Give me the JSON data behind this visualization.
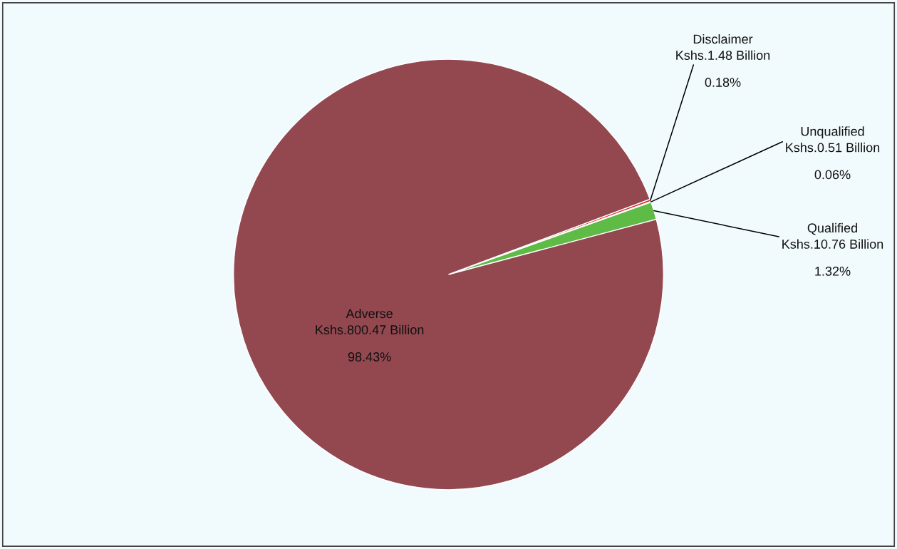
{
  "chart_data": {
    "type": "pie",
    "categories": [
      "Disclaimer",
      "Unqualified",
      "Qualified",
      "Adverse"
    ],
    "values": [
      1.48,
      0.51,
      10.76,
      800.47
    ],
    "colors": [
      "#e0302a",
      "#4a6fb5",
      "#5dbb46",
      "#934850"
    ],
    "value_labels": [
      "Kshs.1.48 Billion",
      "Kshs.0.51 Billion",
      "Kshs.10.76 Billion",
      "Kshs.800.47 Billion"
    ],
    "annotations": [
      "0.18%",
      "0.06%",
      "1.32%",
      "98.43%"
    ],
    "legend": false
  }
}
